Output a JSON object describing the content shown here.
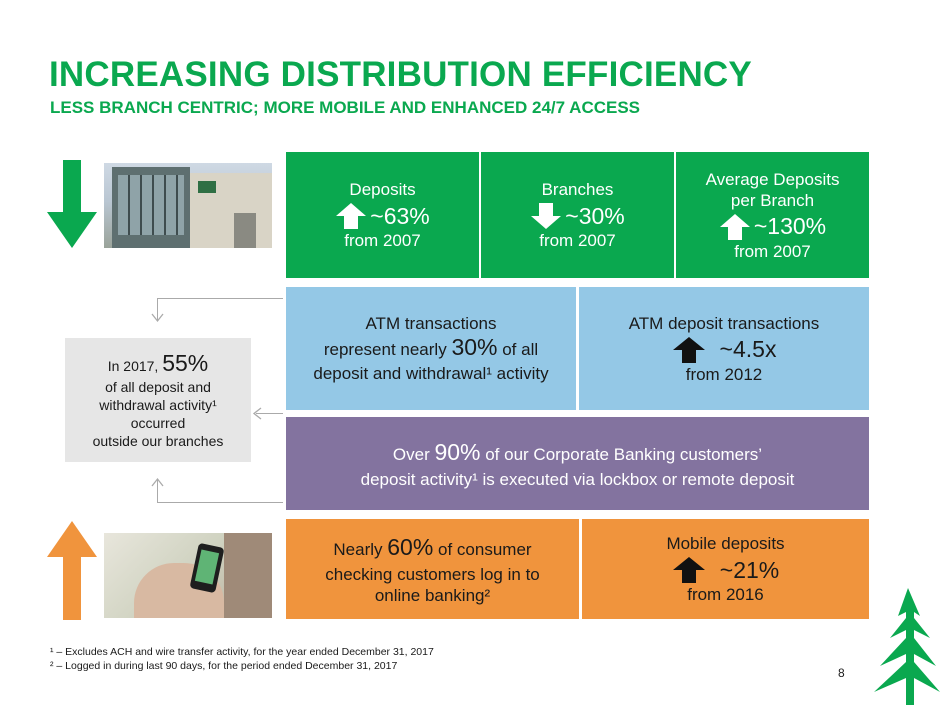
{
  "header": {
    "title": "INCREASING DISTRIBUTION EFFICIENCY",
    "subtitle": "LESS BRANCH CENTRIC; MORE MOBILE AND ENHANCED 24/7 ACCESS"
  },
  "top_row": [
    {
      "label": "Deposits",
      "value": "~63%",
      "sub": "from 2007",
      "arrow": "up"
    },
    {
      "label": "Branches",
      "value": "~30%",
      "sub": "from 2007",
      "arrow": "down"
    },
    {
      "label_line1": "Average Deposits",
      "label_line2": "per Branch",
      "value": "~130%",
      "sub": "from 2007",
      "arrow": "up"
    }
  ],
  "atm": {
    "left_line1": "ATM transactions",
    "left_line2_pre": "represent nearly ",
    "left_line2_em": "30%",
    "left_line2_post": " of all",
    "left_line3": "deposit and withdrawal¹ activity",
    "right_label": "ATM deposit transactions",
    "right_value": "~4.5x",
    "right_sub": "from 2012"
  },
  "side_box": {
    "line1_pre": "In 2017, ",
    "line1_em": "55%",
    "line2": "of all deposit and",
    "line3": "withdrawal activity¹",
    "line4": "occurred",
    "line5": "outside our branches"
  },
  "corporate": {
    "line1_pre": "Over ",
    "line1_em": "90%",
    "line1_post": " of our Corporate Banking customers’",
    "line2": "deposit activity¹ is executed via lockbox or remote deposit"
  },
  "mobile": {
    "left_line1_pre": "Nearly ",
    "left_line1_em": "60%",
    "left_line1_post": " of consumer",
    "left_line2": "checking customers log in to",
    "left_line3": "online banking²",
    "right_label": "Mobile deposits",
    "right_value": "~21%",
    "right_sub": "from 2016"
  },
  "footnotes": {
    "note1": "¹ – Excludes ACH and wire transfer activity, for the year ended December 31, 2017",
    "note2": "² – Logged in during last 90 days, for the period ended December 31, 2017"
  },
  "page_number": "8",
  "icons": {
    "big_down_arrow": "down-arrow-icon",
    "big_up_arrow": "up-arrow-icon",
    "logo": "tree-logo-icon"
  },
  "colors": {
    "brand_green": "#0aa84f",
    "blue": "#94c8e6",
    "purple": "#83739f",
    "orange": "#f0943d",
    "gray": "#e6e6e6"
  }
}
